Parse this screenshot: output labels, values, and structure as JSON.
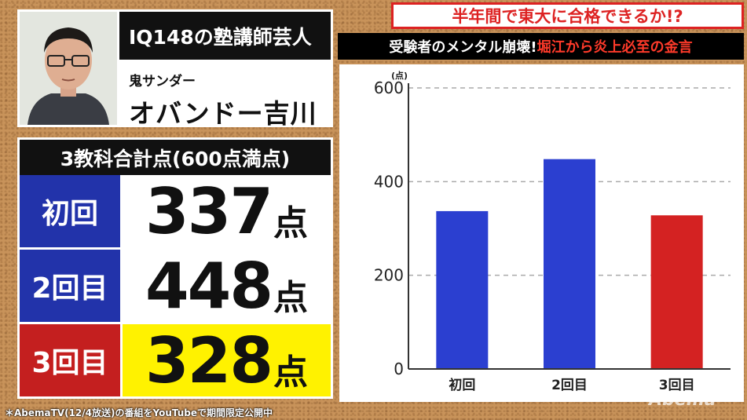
{
  "profile": {
    "title": "IQ148の塾講師芸人",
    "subtitle": "鬼サンダー",
    "name": "オバンドー吉川"
  },
  "scores": {
    "header": "3教科合計点(600点満点)",
    "unit": "点",
    "rows": [
      {
        "label": "初回",
        "value": "337",
        "label_color": "#2233aa",
        "value_bg": "#ffffff"
      },
      {
        "label": "2回目",
        "value": "448",
        "label_color": "#2233aa",
        "value_bg": "#ffffff"
      },
      {
        "label": "3回目",
        "value": "328",
        "label_color": "#c41f1f",
        "value_bg": "#fff200"
      }
    ]
  },
  "headlines": {
    "line1": "半年間で東大に合格できるか!?",
    "line2_white": "受験者のメンタル崩壊!",
    "line2_red": "堀江から炎上必至の金言"
  },
  "chart_data": {
    "type": "bar",
    "categories": [
      "初回",
      "2回目",
      "3回目"
    ],
    "values": [
      337,
      448,
      328
    ],
    "colors": [
      "#2b3fd0",
      "#2b3fd0",
      "#d42222"
    ],
    "ylabel": "(点)",
    "ylim": [
      0,
      600
    ],
    "yticks": [
      0,
      200,
      400,
      600
    ],
    "grid": "horizontal-dashed"
  },
  "footer": "＊AbemaTV(12/4放送)の番組をYouTubeで期間限定公開中",
  "watermark": "Abema"
}
